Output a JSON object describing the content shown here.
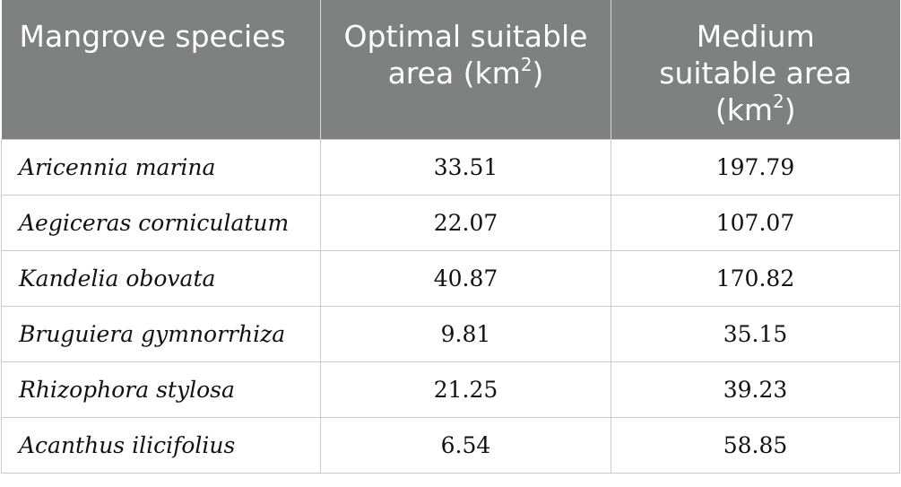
{
  "table": {
    "headers": {
      "species": "Mangrove species",
      "optimal_line1": "Optimal suitable",
      "optimal_line2": "area (km",
      "optimal_sup": "2",
      "optimal_close": ")",
      "medium_line1": "Medium",
      "medium_line2": "suitable area",
      "medium_line3": "(km",
      "medium_sup": "2",
      "medium_close": ")"
    },
    "rows": [
      {
        "species": "Aricennia marina",
        "optimal": "33.51",
        "medium": "197.79"
      },
      {
        "species": "Aegiceras corniculatum",
        "optimal": "22.07",
        "medium": "107.07"
      },
      {
        "species": "Kandelia obovata",
        "optimal": "40.87",
        "medium": "170.82"
      },
      {
        "species": "Bruguiera gymnorrhiza",
        "optimal": "9.81",
        "medium": "35.15"
      },
      {
        "species": "Rhizophora stylosa",
        "optimal": "21.25",
        "medium": "39.23"
      },
      {
        "species": "Acanthus ilicifolius",
        "optimal": "6.54",
        "medium": "58.85"
      }
    ]
  }
}
